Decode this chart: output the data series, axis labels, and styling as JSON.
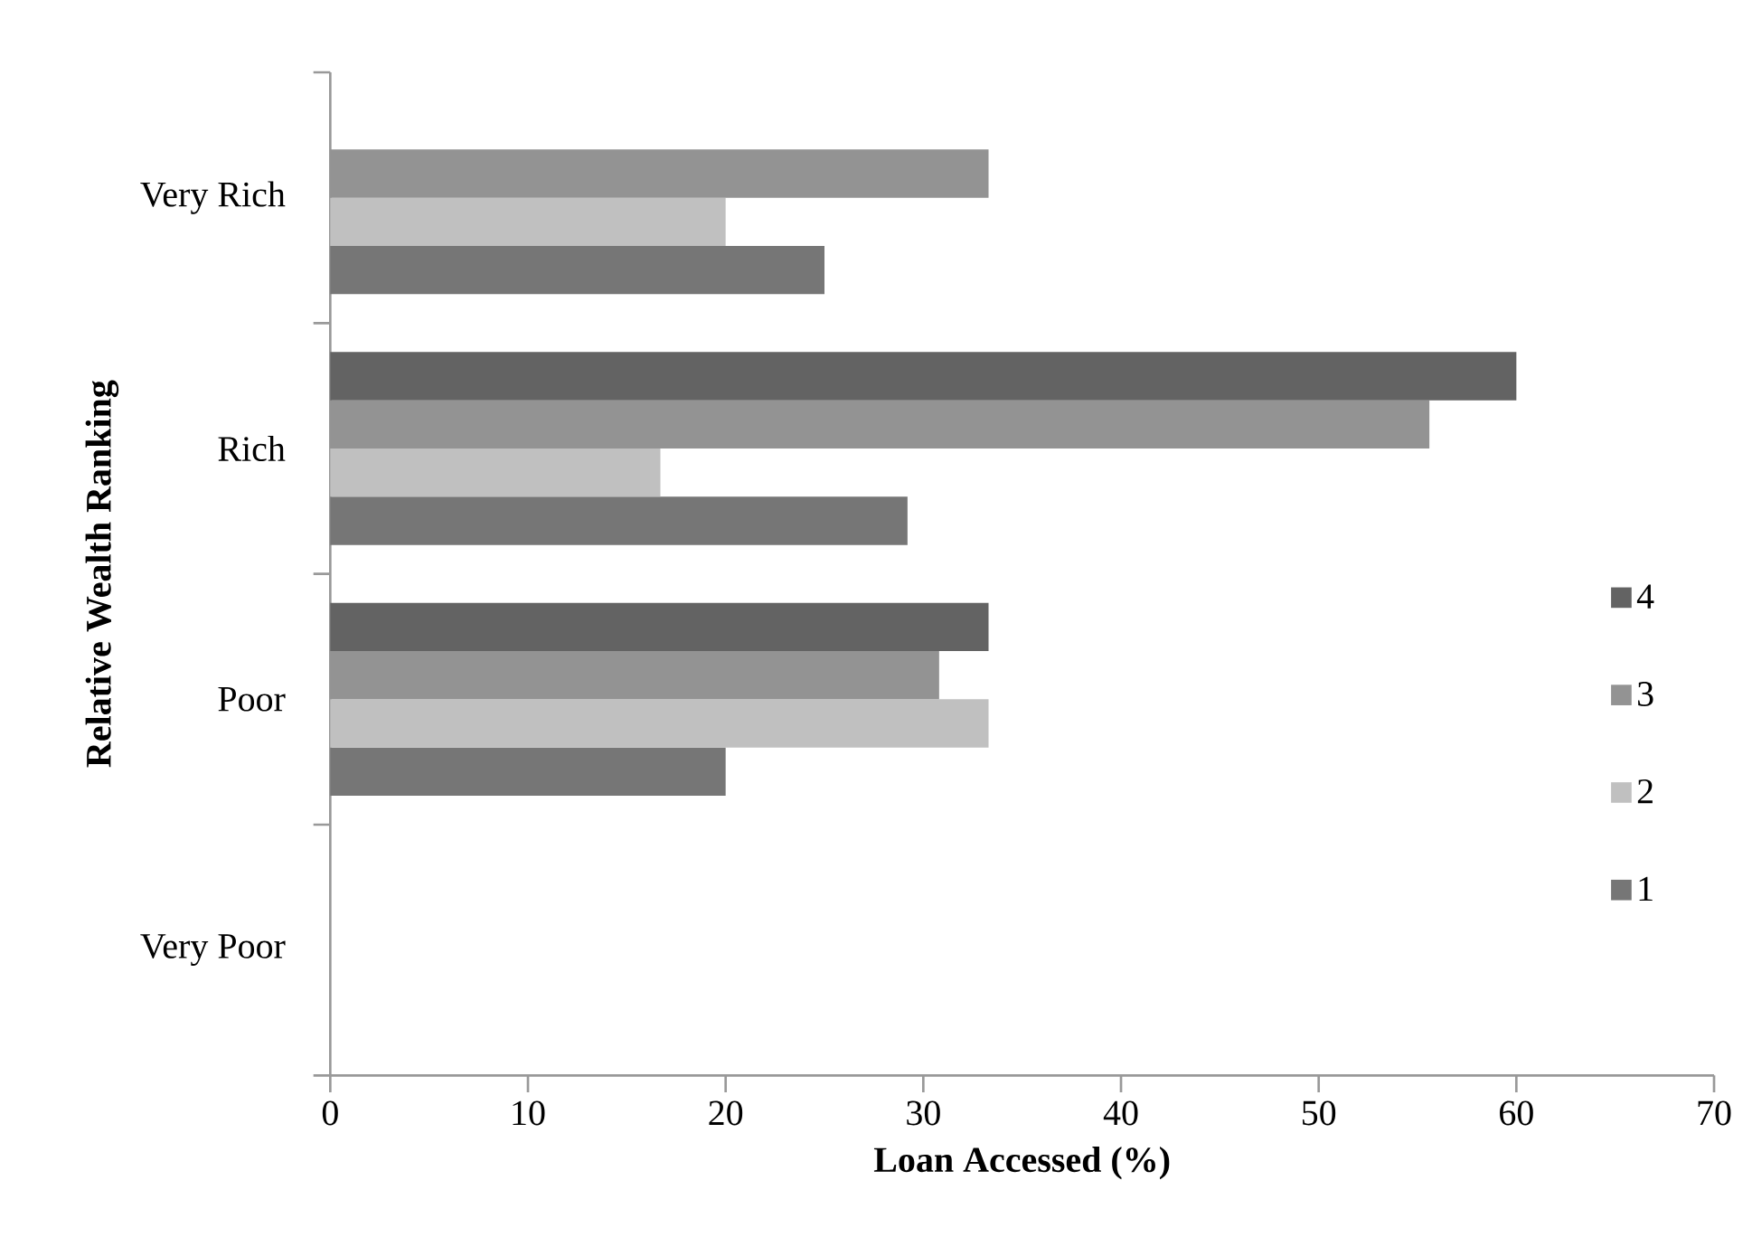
{
  "chart_data": {
    "type": "bar",
    "orientation": "horizontal",
    "xlabel": "Loan Accessed (%)",
    "ylabel": "Relative Wealth Ranking",
    "categories": [
      "Very Rich",
      "Rich",
      "Poor",
      "Very Poor"
    ],
    "series": [
      {
        "name": "1",
        "color": "#767676",
        "values": [
          25,
          29.2,
          20,
          null
        ]
      },
      {
        "name": "2",
        "color": "#c0c0c0",
        "values": [
          20,
          16.7,
          33.3,
          null
        ]
      },
      {
        "name": "3",
        "color": "#939393",
        "values": [
          33.3,
          55.6,
          30.8,
          null
        ]
      },
      {
        "name": "4",
        "color": "#636363",
        "values": [
          null,
          60,
          33.3,
          null
        ]
      }
    ],
    "xlim": [
      0,
      70
    ],
    "xticks": [
      0,
      10,
      20,
      30,
      40,
      50,
      60,
      70
    ],
    "legend": "right"
  }
}
